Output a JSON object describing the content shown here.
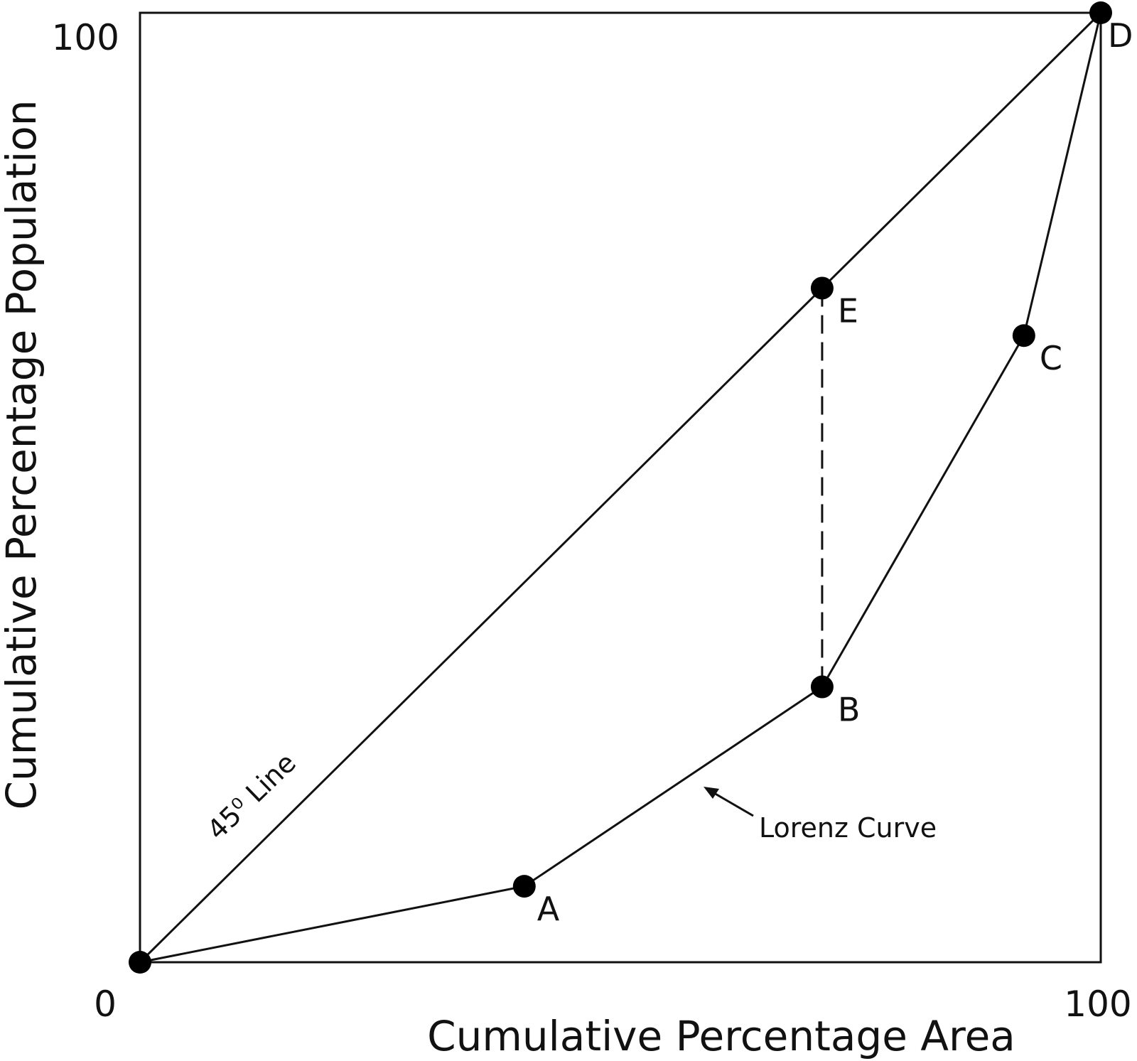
{
  "chart_data": {
    "type": "line",
    "xlabel": "Cumulative Percentage Area",
    "ylabel": "Cumulative Percentage Population",
    "xlim": [
      0,
      100
    ],
    "ylim": [
      0,
      100
    ],
    "x_ticks": [
      "0",
      "100"
    ],
    "y_ticks": [
      "100"
    ],
    "grid": false,
    "series": [
      {
        "name": "45⁰ Line",
        "x": [
          0,
          100
        ],
        "y": [
          0,
          100
        ],
        "style": "solid"
      },
      {
        "name": "Lorenz Curve",
        "x": [
          0,
          40,
          71,
          92,
          100
        ],
        "y": [
          0,
          8,
          29,
          66,
          100
        ],
        "style": "solid"
      }
    ],
    "points": [
      {
        "label": "A",
        "x": 40,
        "y": 8
      },
      {
        "label": "B",
        "x": 71,
        "y": 29
      },
      {
        "label": "C",
        "x": 92,
        "y": 66
      },
      {
        "label": "D",
        "x": 100,
        "y": 100
      },
      {
        "label": "E",
        "x": 71,
        "y": 71
      }
    ],
    "dashed_segment": {
      "from": "E",
      "to": "B"
    },
    "annotations": {
      "diagonal_label": "45⁰ Line",
      "curve_label": "Lorenz Curve"
    },
    "colors": {
      "line": "#111111",
      "point": "#000000",
      "background": "#ffffff"
    }
  }
}
